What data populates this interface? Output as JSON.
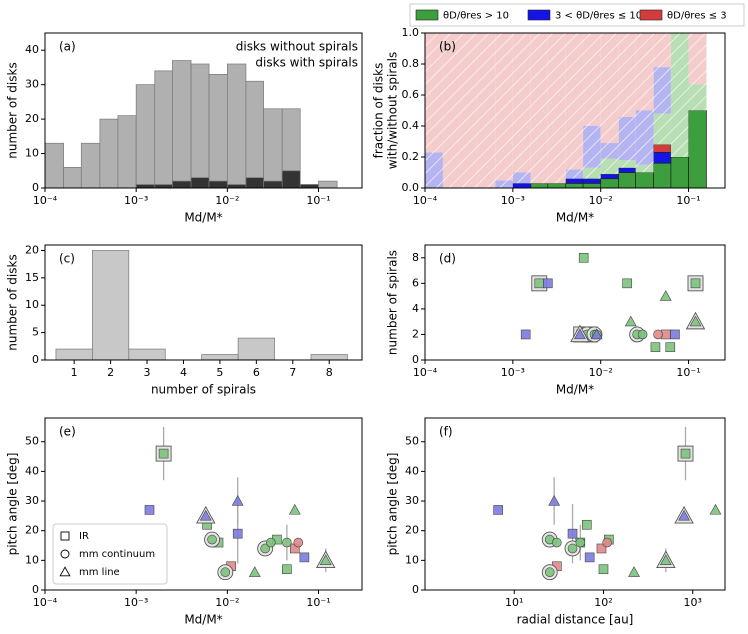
{
  "chart_data": [
    {
      "type": "histogram",
      "panel_label": "(a)",
      "xlog": true,
      "xlim": [
        0.0001,
        0.3
      ],
      "xticks": [
        {
          "value": 0.0001,
          "label": "10⁻⁴"
        },
        {
          "value": 0.001,
          "label": "10⁻³"
        },
        {
          "value": 0.01,
          "label": "10⁻²"
        },
        {
          "value": 0.1,
          "label": "10⁻¹"
        }
      ],
      "ylim": [
        0,
        45
      ],
      "yticks": [
        0,
        10,
        20,
        30,
        40
      ],
      "xlabel": "Md/M*",
      "ylabel": [
        "number of disks"
      ],
      "stacked": false,
      "legend": "upper right",
      "bins": [
        0.0001,
        0.00016,
        0.00025,
        0.0004,
        0.00063,
        0.001,
        0.0016,
        0.0025,
        0.004,
        0.0063,
        0.01,
        0.016,
        0.025,
        0.04,
        0.063,
        0.1,
        0.16
      ],
      "series": [
        {
          "name": "disks without spirals",
          "color": "#b0b0b0",
          "values": [
            13,
            6,
            13,
            20,
            21,
            30,
            34,
            37,
            36,
            33,
            36,
            31,
            23,
            23,
            1,
            2
          ]
        },
        {
          "name": "disks with spirals",
          "color": "#333333",
          "values": [
            0,
            0,
            0,
            0,
            0,
            1,
            1,
            2,
            3,
            2,
            1,
            3,
            2,
            5,
            1,
            0
          ]
        }
      ]
    },
    {
      "type": "histogram",
      "panel_label": "(b)",
      "xlog": true,
      "xlim": [
        0.0001,
        0.26
      ],
      "xticks": [
        {
          "value": 0.0001,
          "label": "10⁻⁴"
        },
        {
          "value": 0.001,
          "label": "10⁻³"
        },
        {
          "value": 0.01,
          "label": "10⁻²"
        },
        {
          "value": 0.1,
          "label": "10⁻¹"
        }
      ],
      "ylim": [
        0,
        1
      ],
      "yticks": [
        {
          "value": 0,
          "label": "0.0"
        },
        {
          "value": 0.2,
          "label": "0.2"
        },
        {
          "value": 0.4,
          "label": "0.4"
        },
        {
          "value": 0.6,
          "label": "0.6"
        },
        {
          "value": 0.8,
          "label": "0.8"
        },
        {
          "value": 1,
          "label": "1.0"
        }
      ],
      "xlabel": "Md/M*",
      "ylabel": [
        "fraction of disks",
        "with/without spirals"
      ],
      "stacked": true,
      "legend": "top outside",
      "bins": [
        0.0001,
        0.00016,
        0.00025,
        0.0004,
        0.00063,
        0.001,
        0.0016,
        0.0025,
        0.004,
        0.0063,
        0.01,
        0.016,
        0.025,
        0.04,
        0.063,
        0.1,
        0.16
      ],
      "series": [
        {
          "name": "θD/θres > 10",
          "color": "#3c9e3c",
          "values": [
            0,
            0,
            0,
            0,
            0,
            0,
            0.03,
            0.03,
            0.03,
            0.03,
            0.06,
            0.1,
            0.1,
            0.16,
            0.2,
            0.5
          ]
        },
        {
          "name": "3 < θD/θres ≤ 10",
          "color": "#1414e6",
          "values": [
            0,
            0,
            0,
            0,
            0,
            0.03,
            0,
            0,
            0.03,
            0.03,
            0.03,
            0.03,
            0,
            0.07,
            0,
            0
          ]
        },
        {
          "name": "θD/θres ≤ 3",
          "color": "#d43c3c",
          "values": [
            0,
            0,
            0,
            0,
            0,
            0,
            0,
            0,
            0,
            0,
            0,
            0,
            0,
            0.05,
            0,
            0
          ]
        },
        {
          "color": "#b8deb4",
          "hatch": true,
          "values": [
            0,
            0,
            0,
            0,
            0,
            0,
            0,
            0,
            0,
            0.07,
            0.1,
            0.05,
            0.05,
            0.2,
            0.8,
            0.17
          ]
        },
        {
          "color": "#b4b4f0",
          "hatch": true,
          "values": [
            0.23,
            0,
            0,
            0,
            0.05,
            0.07,
            0,
            0,
            0.06,
            0.27,
            0.1,
            0.28,
            0.35,
            0.3,
            0,
            0
          ]
        },
        {
          "color": "#f4cccc",
          "hatch": true,
          "values": [
            0.77,
            1,
            1,
            1,
            0.95,
            0.9,
            0.97,
            0.97,
            0.88,
            0.6,
            0.71,
            0.54,
            0.5,
            0.22,
            0,
            0.33
          ]
        }
      ]
    },
    {
      "type": "histogram",
      "panel_label": "(c)",
      "xlog": false,
      "xlim": [
        0.2,
        8.9
      ],
      "xticks": [
        1,
        2,
        3,
        4,
        5,
        6,
        7,
        8
      ],
      "ylim": [
        0,
        21
      ],
      "yticks": [
        0,
        5,
        10,
        15,
        20
      ],
      "xlabel": "number of spirals",
      "ylabel": [
        "number of disks"
      ],
      "stacked": false,
      "bins": [
        0.5,
        1.5,
        2.5,
        3.5,
        4.5,
        5.5,
        6.5,
        7.5,
        8.5
      ],
      "series": [
        {
          "color": "#c8c8c8",
          "values": [
            2,
            20,
            2,
            0,
            1,
            4,
            0,
            1
          ]
        }
      ]
    },
    {
      "type": "scatter",
      "panel_label": "(d)",
      "xlog": true,
      "xlim": [
        0.0001,
        0.26
      ],
      "xticks": [
        {
          "value": 0.0001,
          "label": "10⁻⁴"
        },
        {
          "value": 0.001,
          "label": "10⁻³"
        },
        {
          "value": 0.01,
          "label": "10⁻²"
        },
        {
          "value": 0.1,
          "label": "10⁻¹"
        }
      ],
      "ylim": [
        0,
        9
      ],
      "yticks": [
        0,
        2,
        4,
        6,
        8
      ],
      "xlabel": "Md/M*",
      "ylabel": [
        "number of spirals"
      ],
      "series": [
        {
          "marker": "square",
          "x": [
            0.002,
            0.0025,
            0.0014,
            0.0064,
            0.02,
            0.12,
            0.006,
            0.0075,
            0.042,
            0.062,
            0.07,
            0.055
          ],
          "values": [
            6,
            6,
            2,
            8,
            6,
            6,
            2,
            2,
            1,
            1,
            2,
            2
          ],
          "colors": [
            "#7cc27c",
            "#7b7be0",
            "#7b7be0",
            "#7cc27c",
            "#7cc27c",
            "#7cc27c",
            "#7cc27c",
            "#7cc27c",
            "#7cc27c",
            "#7cc27c",
            "#7b7be0",
            "#e08a8a"
          ],
          "highlight": [
            true,
            false,
            false,
            false,
            false,
            true,
            true,
            true,
            false,
            false,
            false,
            false
          ]
        },
        {
          "marker": "circle",
          "x": [
            0.007,
            0.0085,
            0.009,
            0.026,
            0.03,
            0.045
          ],
          "values": [
            2,
            2,
            2,
            2,
            2,
            2
          ],
          "colors": [
            "#7cc27c",
            "#7cc27c",
            "#7cc27c",
            "#7cc27c",
            "#7cc27c",
            "#e08a8a"
          ],
          "highlight": [
            true,
            true,
            false,
            true,
            false,
            false
          ]
        },
        {
          "marker": "triangle",
          "x": [
            0.0058,
            0.009,
            0.022,
            0.055,
            0.12
          ],
          "values": [
            2,
            2,
            3,
            5,
            3
          ],
          "colors": [
            "#7b7be0",
            "#7b7be0",
            "#7cc27c",
            "#7cc27c",
            "#7cc27c"
          ],
          "highlight": [
            true,
            false,
            false,
            false,
            true
          ]
        }
      ]
    },
    {
      "type": "scatter",
      "panel_label": "(e)",
      "xlog": true,
      "xlim": [
        0.0001,
        0.3
      ],
      "xticks": [
        {
          "value": 0.0001,
          "label": "10⁻⁴"
        },
        {
          "value": 0.001,
          "label": "10⁻³"
        },
        {
          "value": 0.01,
          "label": "10⁻²"
        },
        {
          "value": 0.1,
          "label": "10⁻¹"
        }
      ],
      "ylim": [
        0,
        58
      ],
      "yticks": [
        0,
        10,
        20,
        30,
        40,
        50
      ],
      "xlabel": "Md/M*",
      "ylabel": [
        "pitch angle [deg]"
      ],
      "legend": "lower left",
      "series": [
        {
          "name": "IR",
          "marker": "square",
          "x": [
            0.0014,
            0.002,
            0.006,
            0.008,
            0.011,
            0.013,
            0.045,
            0.035,
            0.055,
            0.07
          ],
          "values": [
            27,
            46,
            22,
            16,
            8,
            19,
            7,
            17,
            14,
            11
          ],
          "colors": [
            "#7b7be0",
            "#7cc27c",
            "#7cc27c",
            "#7cc27c",
            "#e08a8a",
            "#7b7be0",
            "#7cc27c",
            "#7cc27c",
            "#e08a8a",
            "#7b7be0"
          ],
          "highlight": [
            false,
            true,
            false,
            false,
            false,
            false,
            false,
            false,
            false,
            false
          ],
          "yerr": [
            null,
            9,
            null,
            null,
            null,
            10,
            null,
            null,
            null,
            null
          ]
        },
        {
          "name": "mm continuum",
          "marker": "circle",
          "x": [
            0.0068,
            0.0095,
            0.026,
            0.03,
            0.045,
            0.06
          ],
          "values": [
            17,
            6,
            14,
            16,
            16,
            16
          ],
          "colors": [
            "#7cc27c",
            "#7cc27c",
            "#7cc27c",
            "#7cc27c",
            "#7cc27c",
            "#e08a8a"
          ],
          "highlight": [
            true,
            true,
            true,
            false,
            false,
            false
          ],
          "yerr": [
            null,
            null,
            null,
            null,
            6,
            null
          ]
        },
        {
          "name": "mm line",
          "marker": "triangle",
          "x": [
            0.0058,
            0.013,
            0.02,
            0.055,
            0.12
          ],
          "values": [
            25,
            30,
            6,
            27,
            10
          ],
          "colors": [
            "#7b7be0",
            "#7b7be0",
            "#7cc27c",
            "#7cc27c",
            "#7cc27c"
          ],
          "highlight": [
            true,
            false,
            false,
            false,
            true
          ],
          "yerr": [
            null,
            8,
            null,
            null,
            4
          ]
        }
      ]
    },
    {
      "type": "scatter",
      "panel_label": "(f)",
      "xlog": true,
      "xlim": [
        1,
        2300
      ],
      "xticks": [
        {
          "value": 10,
          "label": "10¹"
        },
        {
          "value": 100,
          "label": "10²"
        },
        {
          "value": 1000,
          "label": "10³"
        }
      ],
      "ylim": [
        0,
        58
      ],
      "yticks": [
        0,
        10,
        20,
        30,
        40,
        50
      ],
      "xlabel": "radial distance [au]",
      "ylabel": [
        "pitch angle [deg]"
      ],
      "series": [
        {
          "marker": "square",
          "x": [
            6.6,
            830,
            65,
            55,
            30,
            45,
            100,
            115,
            95,
            70
          ],
          "values": [
            27,
            46,
            22,
            16,
            8,
            19,
            7,
            17,
            14,
            11
          ],
          "colors": [
            "#7b7be0",
            "#7cc27c",
            "#7cc27c",
            "#7cc27c",
            "#e08a8a",
            "#7b7be0",
            "#7cc27c",
            "#7cc27c",
            "#e08a8a",
            "#7b7be0"
          ],
          "highlight": [
            false,
            true,
            false,
            false,
            false,
            false,
            false,
            false,
            false,
            false
          ],
          "yerr": [
            null,
            9,
            null,
            null,
            null,
            10,
            null,
            null,
            null,
            null
          ]
        },
        {
          "marker": "circle",
          "x": [
            25,
            25,
            45,
            30,
            55,
            110
          ],
          "values": [
            17,
            6,
            14,
            16,
            16,
            16
          ],
          "colors": [
            "#7cc27c",
            "#7cc27c",
            "#7cc27c",
            "#7cc27c",
            "#7cc27c",
            "#e08a8a"
          ],
          "highlight": [
            true,
            true,
            true,
            false,
            false,
            false
          ],
          "yerr": [
            null,
            null,
            null,
            null,
            6,
            null
          ]
        },
        {
          "marker": "triangle",
          "x": [
            800,
            28,
            220,
            1800,
            500
          ],
          "values": [
            25,
            30,
            6,
            27,
            10
          ],
          "colors": [
            "#7b7be0",
            "#7b7be0",
            "#7cc27c",
            "#7cc27c",
            "#7cc27c"
          ],
          "highlight": [
            true,
            false,
            false,
            false,
            true
          ],
          "yerr": [
            null,
            8,
            null,
            null,
            4
          ]
        }
      ]
    }
  ]
}
